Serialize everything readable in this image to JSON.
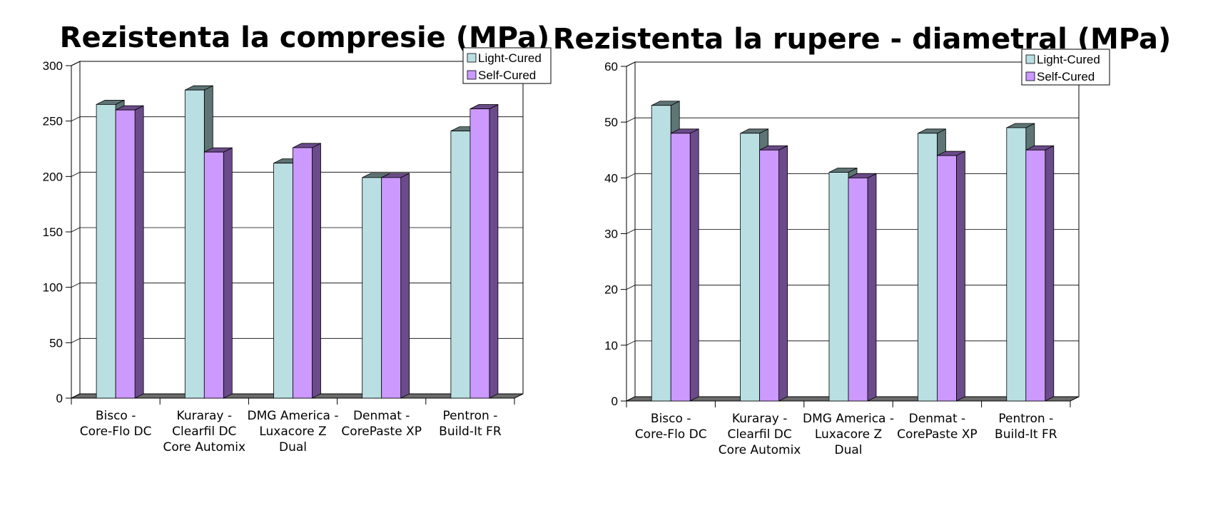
{
  "chart_data": [
    {
      "type": "bar",
      "title": "Rezistenta la compresie (MPa)",
      "xlabel": "",
      "ylabel": "",
      "ylim": [
        0,
        300
      ],
      "yticks": [
        "0",
        "50",
        "100",
        "150",
        "200",
        "250",
        "300"
      ],
      "categories": [
        [
          "Bisco -",
          "Core-Flo DC"
        ],
        [
          "Kuraray -",
          "Clearfil DC",
          "Core Automix"
        ],
        [
          "DMG America -",
          "Luxacore Z",
          "Dual"
        ],
        [
          "Denmat -",
          "CorePaste XP"
        ],
        [
          "Pentron -",
          "Build-It FR"
        ]
      ],
      "series": [
        {
          "name": "Light-Cured",
          "values": [
            265,
            278,
            212,
            199,
            241
          ],
          "color": "#b9dfe3",
          "side_color": "#5e7475"
        },
        {
          "name": "Self-Cured",
          "values": [
            260,
            222,
            226,
            199,
            261
          ],
          "color": "#cc99ff",
          "side_color": "#6b4b8a"
        }
      ],
      "grid": true,
      "legend": "top-right"
    },
    {
      "type": "bar",
      "title": "Rezistenta la rupere - diametral (MPa)",
      "xlabel": "",
      "ylabel": "",
      "ylim": [
        0,
        60
      ],
      "yticks": [
        "0",
        "10",
        "20",
        "30",
        "40",
        "50",
        "60"
      ],
      "categories": [
        [
          "Bisco -",
          "Core-Flo DC"
        ],
        [
          "Kuraray -",
          "Clearfil DC",
          "Core Automix"
        ],
        [
          "DMG America -",
          "Luxacore Z",
          "Dual"
        ],
        [
          "Denmat -",
          "CorePaste XP"
        ],
        [
          "Pentron -",
          "Build-It FR"
        ]
      ],
      "series": [
        {
          "name": "Light-Cured",
          "values": [
            53,
            48,
            41,
            48,
            49
          ],
          "color": "#b9dfe3",
          "side_color": "#5e7475"
        },
        {
          "name": "Self-Cured",
          "values": [
            48,
            45,
            40,
            44,
            45
          ],
          "color": "#cc99ff",
          "side_color": "#6b4b8a"
        }
      ],
      "grid": true,
      "legend": "top-right"
    }
  ]
}
